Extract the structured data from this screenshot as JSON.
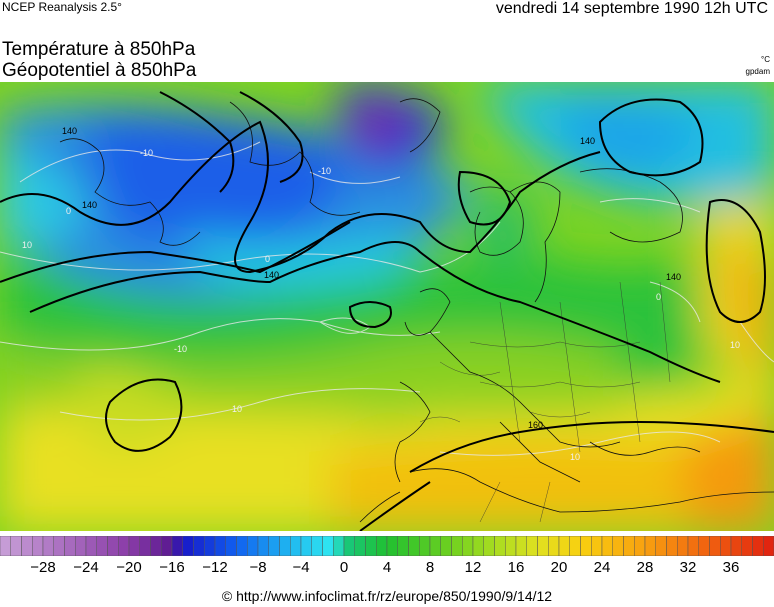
{
  "header": {
    "source": "NCEP Reanalysis 2.5°",
    "date": "vendredi 14 septembre 1990 12h UTC",
    "title_line_1": "Température à 850hPa",
    "title_line_2": "Géopotentiel à 850hPa",
    "unit_temperature": "°C",
    "unit_geopotential": "gpdam"
  },
  "map": {
    "contour_labels_geopotential": [
      "140",
      "140",
      "140",
      "140",
      "140",
      "160"
    ],
    "contour_labels_temperature": [
      "-10",
      "0",
      "0",
      "10",
      "-10",
      "10",
      "-10",
      "10",
      "0",
      "10"
    ]
  },
  "legend": {
    "min": -32,
    "max": 40,
    "step": 1,
    "tick_labels": [
      "−28",
      "−24",
      "−20",
      "−16",
      "−12",
      "−8",
      "−4",
      "0",
      "4",
      "8",
      "12",
      "16",
      "20",
      "24",
      "28",
      "32",
      "36"
    ],
    "tick_values": [
      -28,
      -24,
      -20,
      -16,
      -12,
      -8,
      -4,
      0,
      4,
      8,
      12,
      16,
      20,
      24,
      28,
      32,
      36
    ]
  },
  "footer": {
    "credit": "© http://www.infoclimat.fr/rz/europe/850/1990/9/14/12"
  }
}
